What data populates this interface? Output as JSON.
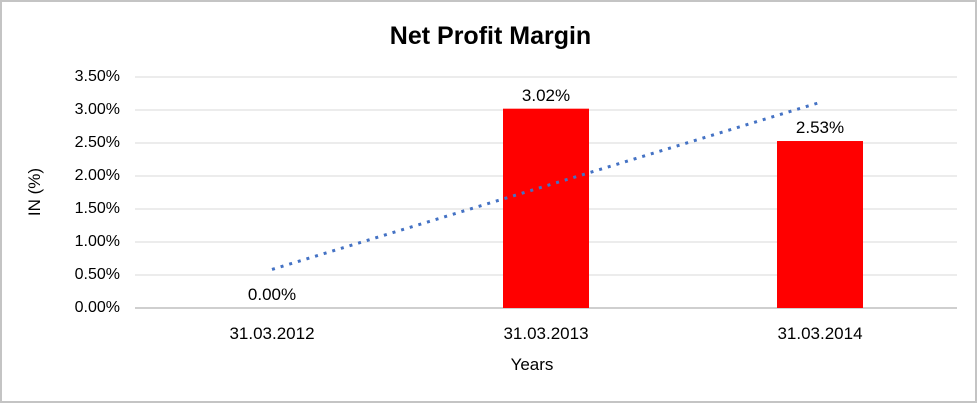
{
  "chart_data": {
    "type": "bar",
    "title": "Net Profit Margin",
    "categories": [
      "31.03.2012",
      "31.03.2013",
      "31.03.2014"
    ],
    "values": [
      0.0,
      3.02,
      2.53
    ],
    "data_labels": [
      "0.00%",
      "3.02%",
      "2.53%"
    ],
    "xlabel": "Years",
    "ylabel": "IN (%)",
    "ylim": [
      0,
      3.5
    ],
    "ytick_step": 0.5,
    "ytick_labels": [
      "0.00%",
      "0.50%",
      "1.00%",
      "1.50%",
      "2.00%",
      "2.50%",
      "3.00%",
      "3.50%"
    ],
    "grid": true,
    "legend": "none",
    "bar_color": "#FF0000",
    "trendline": {
      "style": "dotted",
      "color": "#4472C4",
      "start_value": 0.585,
      "end_value": 3.115,
      "start_category_index": 0,
      "end_category_index": 2
    },
    "colors": {
      "gridline": "#D9D9D9",
      "axis_line": "#BFBFBF",
      "text": "#000000",
      "frame_border": "#C4C4C4",
      "background": "#FFFFFF"
    }
  }
}
